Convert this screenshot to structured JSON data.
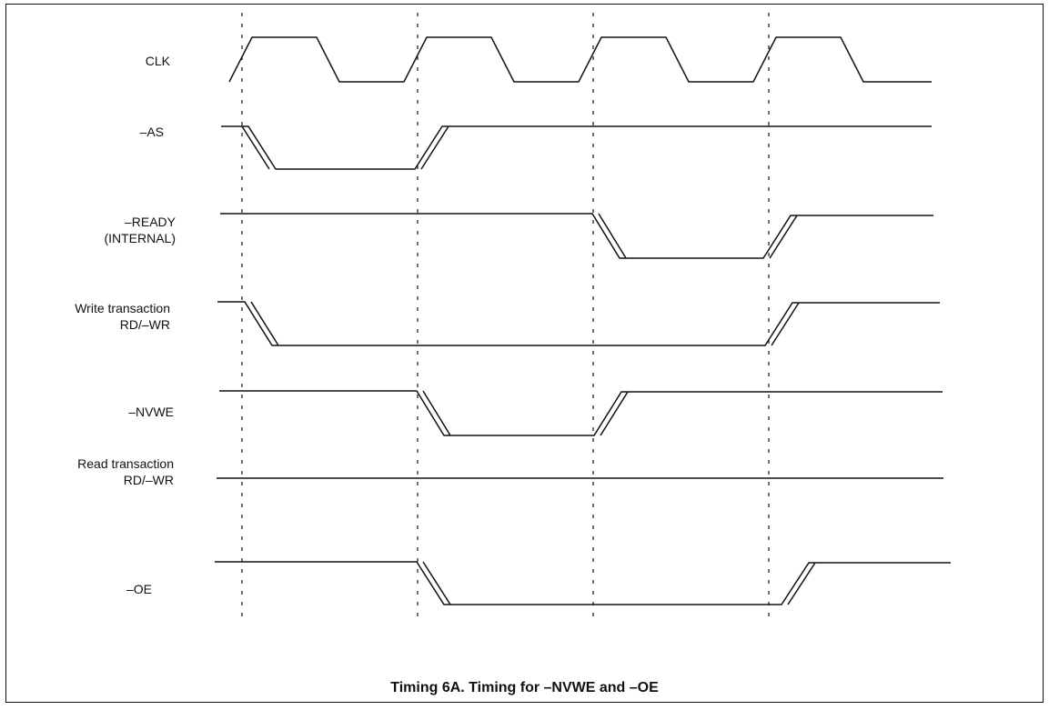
{
  "caption": "Timing 6A. Timing for –NVWE and –OE",
  "signals": {
    "clk": "CLK",
    "as": "–AS",
    "ready": [
      "–READY",
      "(INTERNAL)"
    ],
    "write_rdwr": [
      "Write transaction",
      "RD/–WR"
    ],
    "nvwe": "–NVWE",
    "read_rdwr": [
      "Read transaction",
      "RD/–WR"
    ],
    "oe": "–OE"
  },
  "colors": {
    "line": "#111111",
    "background": "#ffffff"
  }
}
